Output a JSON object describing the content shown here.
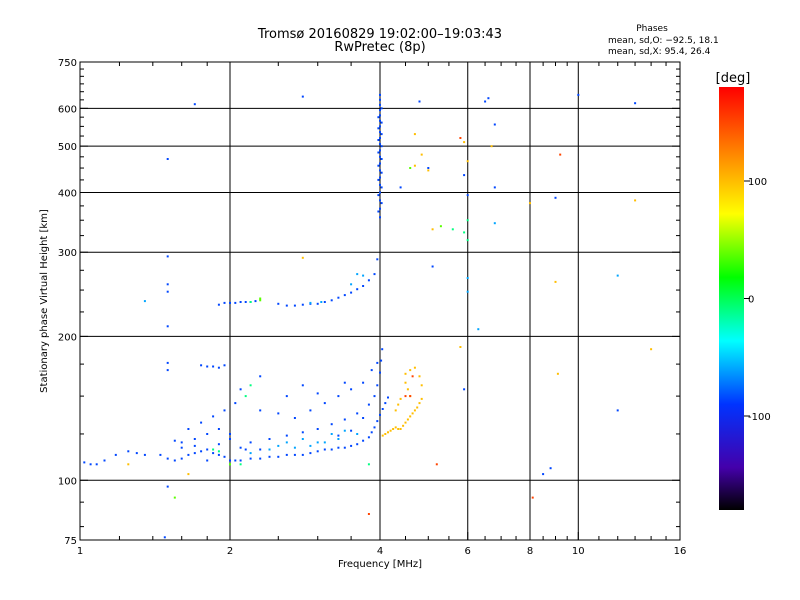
{
  "header": {
    "title_line1": "Tromsø 20160829 19:02:00–19:03:43",
    "title_line2": "RwPretec (8p)",
    "phases_title": "Phases",
    "phases_o": "mean, sd,O: −92.5, 18.1",
    "phases_x": "mean, sd,X:  95.4, 26.4"
  },
  "chart_data": {
    "type": "scatter",
    "title": "Tromsø 20160829 19:02:00–19:03:43",
    "subtitle": "RwPretec (8p)",
    "xlabel": "Frequency [MHz]",
    "ylabel": "Stationary phase Virtual Height [km]",
    "xscale": "log",
    "yscale": "log",
    "xlim": [
      1,
      16
    ],
    "ylim": [
      75,
      750
    ],
    "x_ticks": [
      1,
      2,
      4,
      6,
      8,
      10,
      16
    ],
    "x_tick_labels": [
      "1",
      "2",
      "4",
      "6",
      "8",
      "10",
      "16"
    ],
    "y_ticks": [
      75,
      100,
      200,
      300,
      400,
      500,
      600,
      750
    ],
    "y_tick_labels": [
      "75",
      "100",
      "200",
      "300",
      "400",
      "500",
      "600",
      "750"
    ],
    "x_gridlines": [
      2,
      4,
      6,
      8,
      10
    ],
    "y_gridlines": [
      100,
      200,
      300,
      400,
      500,
      600
    ],
    "grid": true,
    "colorbar": {
      "label": "[deg]",
      "range": [
        -180,
        180
      ],
      "ticks": [
        100,
        0,
        -100
      ],
      "tick_labels": [
        "100",
        "0",
        "-100"
      ]
    },
    "series": [
      {
        "phase": -95,
        "points": [
          [
            1.02,
            109
          ],
          [
            1.05,
            108
          ],
          [
            1.08,
            108
          ],
          [
            1.12,
            110
          ],
          [
            1.18,
            113
          ],
          [
            1.25,
            115
          ],
          [
            1.3,
            114
          ],
          [
            1.35,
            113
          ],
          [
            1.45,
            113
          ],
          [
            1.5,
            111
          ],
          [
            1.55,
            110
          ],
          [
            1.6,
            111
          ],
          [
            1.65,
            113
          ],
          [
            1.7,
            114
          ],
          [
            1.75,
            115
          ],
          [
            1.8,
            116
          ],
          [
            1.85,
            114
          ],
          [
            1.9,
            113
          ],
          [
            1.95,
            112
          ],
          [
            2.0,
            110
          ],
          [
            2.05,
            110
          ],
          [
            2.1,
            110
          ],
          [
            2.2,
            111
          ],
          [
            2.3,
            111
          ],
          [
            2.4,
            112
          ],
          [
            2.5,
            112
          ],
          [
            2.6,
            113
          ],
          [
            2.7,
            113
          ],
          [
            2.8,
            113
          ],
          [
            2.9,
            114
          ],
          [
            3.0,
            115
          ],
          [
            3.1,
            116
          ],
          [
            3.2,
            116
          ],
          [
            3.3,
            117
          ],
          [
            3.4,
            117
          ],
          [
            3.5,
            118
          ],
          [
            3.6,
            119
          ],
          [
            3.7,
            121
          ],
          [
            3.8,
            123
          ],
          [
            3.85,
            126
          ],
          [
            3.9,
            129
          ],
          [
            3.95,
            133
          ],
          [
            4.0,
            137
          ],
          [
            4.05,
            141
          ],
          [
            4.1,
            145
          ],
          [
            4.15,
            149
          ],
          [
            1.6,
            120
          ],
          [
            1.7,
            122
          ],
          [
            1.8,
            125
          ],
          [
            1.9,
            128
          ],
          [
            2.0,
            125
          ],
          [
            2.2,
            120
          ],
          [
            2.4,
            122
          ],
          [
            2.6,
            124
          ],
          [
            2.8,
            126
          ],
          [
            3.0,
            128
          ],
          [
            3.2,
            131
          ],
          [
            3.4,
            134
          ],
          [
            3.6,
            138
          ],
          [
            3.8,
            144
          ],
          [
            3.9,
            150
          ],
          [
            3.95,
            158
          ],
          [
            4.0,
            168
          ],
          [
            4.02,
            178
          ],
          [
            4.04,
            188
          ],
          [
            1.65,
            128
          ],
          [
            1.75,
            132
          ],
          [
            1.85,
            136
          ],
          [
            1.95,
            140
          ],
          [
            2.05,
            145
          ],
          [
            2.3,
            140
          ],
          [
            2.5,
            138
          ],
          [
            2.7,
            135
          ],
          [
            2.9,
            140
          ],
          [
            3.1,
            145
          ],
          [
            3.3,
            150
          ],
          [
            3.5,
            155
          ],
          [
            3.7,
            160
          ],
          [
            3.85,
            170
          ],
          [
            3.95,
            176
          ],
          [
            2.1,
            155
          ],
          [
            2.6,
            150
          ],
          [
            3.0,
            152
          ],
          [
            3.4,
            160
          ],
          [
            2.3,
            165
          ],
          [
            2.8,
            158
          ],
          [
            1.75,
            174
          ],
          [
            1.8,
            173
          ],
          [
            1.85,
            173
          ],
          [
            1.9,
            172
          ],
          [
            1.95,
            174
          ],
          [
            1.5,
            176
          ],
          [
            1.5,
            170
          ],
          [
            2.0,
            122
          ],
          [
            2.1,
            117
          ],
          [
            2.15,
            116
          ],
          [
            1.9,
            119
          ],
          [
            1.55,
            121
          ],
          [
            1.6,
            117
          ],
          [
            1.7,
            118
          ],
          [
            1.8,
            110
          ],
          [
            2.3,
            116
          ],
          [
            3.3,
            124
          ],
          [
            3.5,
            127
          ],
          [
            3.7,
            135
          ],
          [
            1.9,
            233
          ],
          [
            1.95,
            235
          ],
          [
            2.0,
            235
          ],
          [
            2.05,
            235
          ],
          [
            2.1,
            236
          ],
          [
            2.15,
            236
          ],
          [
            2.2,
            236
          ],
          [
            2.25,
            237
          ],
          [
            2.5,
            234
          ],
          [
            2.6,
            232
          ],
          [
            2.7,
            232
          ],
          [
            2.8,
            233
          ],
          [
            2.9,
            234
          ],
          [
            3.0,
            234
          ],
          [
            3.1,
            236
          ],
          [
            3.2,
            238
          ],
          [
            3.3,
            241
          ],
          [
            3.4,
            244
          ],
          [
            3.5,
            247
          ],
          [
            3.6,
            251
          ],
          [
            3.7,
            255
          ],
          [
            3.8,
            262
          ],
          [
            3.9,
            270
          ],
          [
            3.95,
            290
          ],
          [
            4.0,
            355
          ],
          [
            4.0,
            370
          ],
          [
            4.0,
            385
          ],
          [
            4.0,
            400
          ],
          [
            4.0,
            415
          ],
          [
            4.0,
            430
          ],
          [
            4.0,
            445
          ],
          [
            4.0,
            460
          ],
          [
            4.0,
            475
          ],
          [
            4.0,
            490
          ],
          [
            4.0,
            505
          ],
          [
            4.0,
            520
          ],
          [
            4.0,
            535
          ],
          [
            4.0,
            550
          ],
          [
            4.0,
            565
          ],
          [
            4.0,
            580
          ],
          [
            4.0,
            595
          ],
          [
            4.0,
            610
          ],
          [
            4.0,
            625
          ],
          [
            4.0,
            640
          ],
          [
            3.97,
            365
          ],
          [
            3.97,
            395
          ],
          [
            3.97,
            425
          ],
          [
            3.97,
            455
          ],
          [
            3.97,
            485
          ],
          [
            3.97,
            515
          ],
          [
            3.97,
            545
          ],
          [
            3.97,
            575
          ],
          [
            4.03,
            380
          ],
          [
            4.03,
            410
          ],
          [
            4.03,
            440
          ],
          [
            4.03,
            470
          ],
          [
            4.03,
            500
          ],
          [
            4.03,
            530
          ],
          [
            4.03,
            560
          ],
          [
            4.03,
            600
          ],
          [
            1.5,
            294
          ],
          [
            1.5,
            257
          ],
          [
            1.5,
            248
          ],
          [
            1.5,
            210
          ],
          [
            1.5,
            470
          ],
          [
            1.7,
            612
          ],
          [
            2.8,
            635
          ],
          [
            4.8,
            620
          ],
          [
            4.4,
            410
          ],
          [
            5.0,
            450
          ],
          [
            5.9,
            435
          ],
          [
            6.0,
            395
          ],
          [
            6.6,
            630
          ],
          [
            6.8,
            555
          ],
          [
            6.8,
            410
          ],
          [
            6.5,
            620
          ],
          [
            9.0,
            390
          ],
          [
            8.5,
            103
          ],
          [
            8.8,
            106
          ],
          [
            10.0,
            640
          ],
          [
            12.0,
            140
          ],
          [
            13.0,
            615
          ],
          [
            5.1,
            280
          ],
          [
            5.9,
            155
          ],
          [
            1.5,
            97
          ],
          [
            1.48,
            76
          ]
        ]
      },
      {
        "phase": -60,
        "points": [
          [
            2.6,
            120
          ],
          [
            2.8,
            122
          ],
          [
            3.0,
            120
          ],
          [
            3.2,
            125
          ],
          [
            3.4,
            127
          ],
          [
            3.6,
            125
          ],
          [
            2.5,
            118
          ],
          [
            2.7,
            117
          ],
          [
            2.9,
            118
          ],
          [
            3.1,
            120
          ],
          [
            3.3,
            122
          ],
          [
            2.2,
            114
          ],
          [
            2.4,
            116
          ],
          [
            3.6,
            270
          ],
          [
            3.7,
            268
          ],
          [
            3.5,
            257
          ],
          [
            2.9,
            235
          ],
          [
            3.05,
            236
          ],
          [
            1.35,
            237
          ],
          [
            6.0,
            265
          ],
          [
            6.0,
            248
          ],
          [
            6.3,
            207
          ],
          [
            6.8,
            345
          ],
          [
            12.0,
            268
          ]
        ]
      },
      {
        "phase": -20,
        "points": [
          [
            3.8,
            108
          ],
          [
            2.2,
            158
          ],
          [
            2.15,
            150
          ],
          [
            2.0,
            108
          ],
          [
            2.1,
            108
          ],
          [
            2.2,
            236
          ],
          [
            5.9,
            330
          ],
          [
            6.0,
            350
          ],
          [
            6.0,
            318
          ],
          [
            5.6,
            335
          ],
          [
            1.85,
            116
          ],
          [
            1.9,
            115
          ]
        ]
      },
      {
        "phase": 20,
        "points": [
          [
            1.55,
            92
          ],
          [
            2.3,
            240
          ],
          [
            5.3,
            340
          ],
          [
            4.6,
            450
          ],
          [
            2.3,
            238
          ],
          [
            2.0,
            108
          ]
        ]
      },
      {
        "phase": 100,
        "points": [
          [
            4.05,
            124
          ],
          [
            4.1,
            125
          ],
          [
            4.15,
            126
          ],
          [
            4.2,
            127
          ],
          [
            4.25,
            128
          ],
          [
            4.3,
            129
          ],
          [
            4.35,
            128
          ],
          [
            4.4,
            128
          ],
          [
            4.45,
            130
          ],
          [
            4.5,
            132
          ],
          [
            4.55,
            134
          ],
          [
            4.6,
            136
          ],
          [
            4.65,
            138
          ],
          [
            4.7,
            140
          ],
          [
            4.75,
            142
          ],
          [
            4.8,
            145
          ],
          [
            4.85,
            148
          ],
          [
            4.6,
            150
          ],
          [
            4.55,
            155
          ],
          [
            4.5,
            160
          ],
          [
            4.5,
            167
          ],
          [
            4.6,
            170
          ],
          [
            4.7,
            172
          ],
          [
            4.8,
            165
          ],
          [
            4.85,
            158
          ],
          [
            4.4,
            148
          ],
          [
            4.35,
            144
          ],
          [
            4.3,
            140
          ],
          [
            4.7,
            530
          ],
          [
            4.85,
            480
          ],
          [
            4.7,
            455
          ],
          [
            5.0,
            445
          ],
          [
            5.1,
            335
          ],
          [
            5.9,
            510
          ],
          [
            6.0,
            465
          ],
          [
            2.8,
            292
          ],
          [
            8.0,
            380
          ],
          [
            9.0,
            260
          ],
          [
            9.1,
            167
          ],
          [
            14.0,
            188
          ],
          [
            13.0,
            385
          ],
          [
            5.8,
            190
          ],
          [
            1.25,
            108
          ],
          [
            1.65,
            103
          ],
          [
            6.7,
            500
          ]
        ]
      },
      {
        "phase": 150,
        "points": [
          [
            8.1,
            92
          ],
          [
            9.2,
            480
          ],
          [
            5.2,
            108
          ],
          [
            4.6,
            150
          ],
          [
            4.5,
            150
          ],
          [
            4.65,
            165
          ],
          [
            3.8,
            85
          ],
          [
            5.8,
            520
          ]
        ]
      }
    ]
  }
}
